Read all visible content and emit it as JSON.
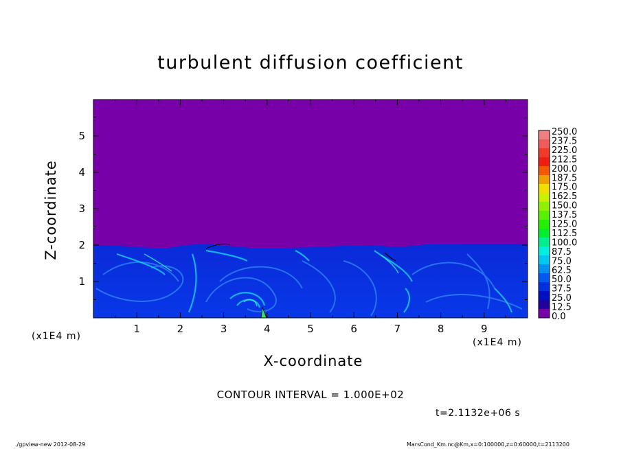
{
  "chart_data": {
    "type": "heatmap",
    "title": "turbulent diffusion coefficient",
    "xlabel": "X-coordinate",
    "ylabel": "Z-coordinate",
    "x_unit": "(x1E4 m)",
    "y_unit": "(x1E4 m)",
    "xlim": [
      0,
      10
    ],
    "ylim": [
      0,
      6
    ],
    "x_ticks": [
      "1",
      "2",
      "3",
      "4",
      "5",
      "6",
      "7",
      "8",
      "9"
    ],
    "y_ticks": [
      "1",
      "2",
      "3",
      "4",
      "5"
    ],
    "contour_interval": "CONTOUR INTERVAL = 1.000E+02",
    "time": "t=2.1132e+06 s",
    "colorbar": {
      "levels": [
        "250.0",
        "237.5",
        "225.0",
        "212.5",
        "200.0",
        "187.5",
        "175.0",
        "162.5",
        "150.0",
        "137.5",
        "125.0",
        "112.5",
        "100.0",
        "87.5",
        "75.0",
        "62.5",
        "50.0",
        "37.5",
        "25.0",
        "12.5",
        "0.0"
      ],
      "colors": [
        "#f08080",
        "#f05c5c",
        "#f03a2a",
        "#f01e12",
        "#f05a00",
        "#f0a000",
        "#f0e000",
        "#c8f000",
        "#90f000",
        "#58f000",
        "#22f000",
        "#00f030",
        "#00f090",
        "#00f0e0",
        "#00c8f0",
        "#0090f0",
        "#0058f0",
        "#0030e0",
        "#0010c0",
        "#20009a",
        "#7800a8"
      ]
    },
    "background_value_color": "#7800a8",
    "field_top_z": 2.0
  },
  "footer": {
    "left": "./gpview-new   2012-08-29",
    "right": "MarsCond_Km.nc@Km,x=0:100000,z=0:60000,t=2113200"
  }
}
